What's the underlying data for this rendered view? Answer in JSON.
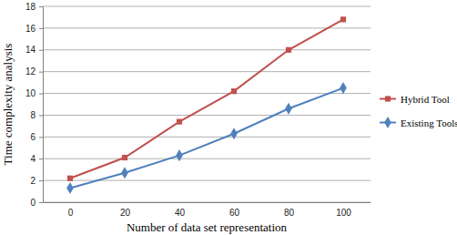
{
  "chart_data": {
    "type": "line",
    "x_label": "Number of data set representation",
    "y_label": "Time complexity analysis",
    "categories": [
      "0",
      "20",
      "40",
      "60",
      "80",
      "100"
    ],
    "series": [
      {
        "name": "Hybrid Tool",
        "color": "#c0504d",
        "marker": "square",
        "values": [
          2.2,
          4.1,
          7.4,
          10.2,
          14.0,
          16.8
        ]
      },
      {
        "name": "Existing Tools",
        "color": "#4f81bd",
        "marker": "diamond",
        "values": [
          1.3,
          2.7,
          4.3,
          6.3,
          8.6,
          10.5
        ]
      }
    ],
    "ylim": [
      0,
      18
    ],
    "yticks": [
      0,
      2,
      4,
      6,
      8,
      10,
      12,
      14,
      16,
      18
    ],
    "grid": true,
    "legend": "right"
  }
}
